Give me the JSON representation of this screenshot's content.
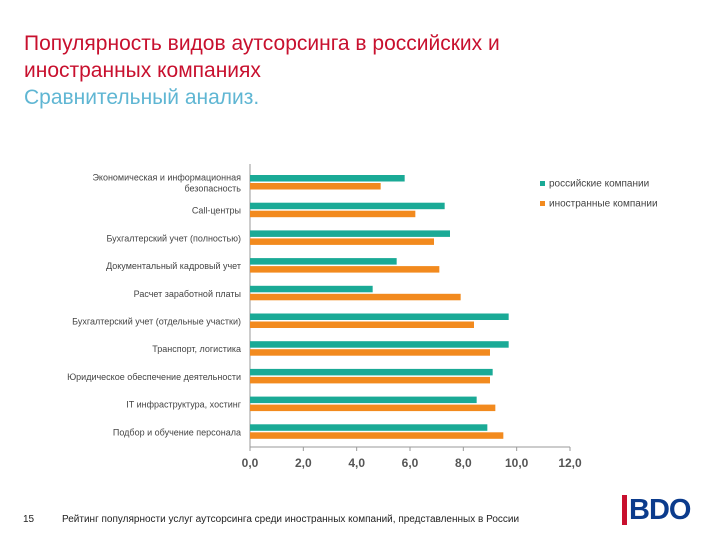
{
  "header": {
    "title_line1": "Популярность видов аутсорсинга в российских и",
    "title_line2": "иностранных компаниях",
    "subtitle": "Сравнительный анализ."
  },
  "footer": {
    "page_number": "15",
    "note": "Рейтинг популярности услуг аутсорсинга среди иностранных компаний, представленных в России"
  },
  "logo": {
    "text": "BDO"
  },
  "colors": {
    "title": "#c8102e",
    "subtitle": "#5fb6d3",
    "russian": "#1aaa96",
    "foreign": "#f28a1e"
  },
  "chart_data": {
    "type": "bar",
    "orientation": "horizontal",
    "categories": [
      [
        "Экономическая и информационная",
        "безопасность"
      ],
      [
        "Call-центры"
      ],
      [
        "Бухгалтерский учет (полностью)"
      ],
      [
        "Документальный кадровый учет"
      ],
      [
        "Расчет заработной платы"
      ],
      [
        "Бухгалтерский учет (отдельные участки)"
      ],
      [
        "Транспорт, логистика"
      ],
      [
        "Юридическое обеспечение деятельности"
      ],
      [
        "IT инфраструктура, хостинг"
      ],
      [
        "Подбор и обучение персонала"
      ]
    ],
    "series": [
      {
        "name": "российские компании",
        "color": "#1aaa96",
        "values": [
          5.8,
          7.3,
          7.5,
          5.5,
          4.6,
          9.7,
          9.7,
          9.1,
          8.5,
          8.9
        ]
      },
      {
        "name": "иностранные компании",
        "color": "#f28a1e",
        "values": [
          4.9,
          6.2,
          6.9,
          7.1,
          7.9,
          8.4,
          9.0,
          9.0,
          9.2,
          9.5
        ]
      }
    ],
    "xlim": [
      0,
      12
    ],
    "xticks": [
      "0,0",
      "2,0",
      "4,0",
      "6,0",
      "8,0",
      "10,0",
      "12,0"
    ],
    "legend_position": "top-right",
    "grid": false
  }
}
